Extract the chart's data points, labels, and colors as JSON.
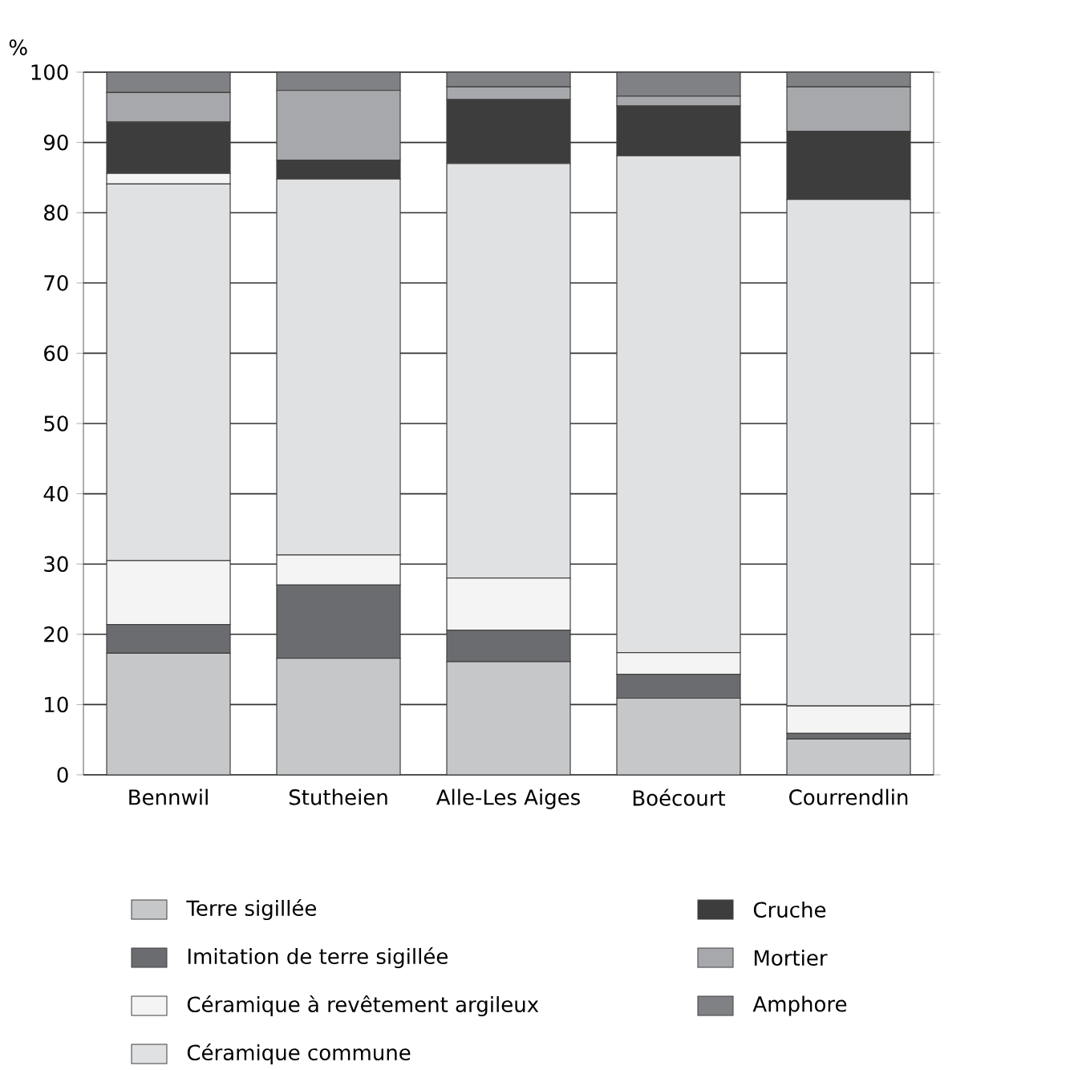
{
  "chart_data": {
    "type": "bar",
    "stacked": true,
    "ylabel": "%",
    "categories": [
      "Bennwil",
      "Stutheien",
      "Alle-Les Aiges",
      "Boécourt",
      "Courrendlin"
    ],
    "ylim": [
      0,
      100
    ],
    "yticks": [
      0,
      10,
      20,
      30,
      40,
      50,
      60,
      70,
      80,
      90,
      100
    ],
    "grid": "y",
    "legend": "bottom",
    "series": [
      {
        "name": "Terre sigillée",
        "color": "#c6c7c9",
        "values": [
          17.3,
          16.6,
          16.1,
          10.9,
          5.1
        ]
      },
      {
        "name": "Imitation de terre sigillée",
        "color": "#6b6c70",
        "values": [
          4.1,
          10.4,
          4.5,
          3.4,
          0.8
        ]
      },
      {
        "name": "Céramique à revêtement argileux",
        "color": "#f4f4f4",
        "values": [
          9.1,
          4.3,
          7.4,
          3.1,
          3.9
        ]
      },
      {
        "name": "Céramique commune",
        "color": "#e0e1e3",
        "values": [
          53.6,
          53.5,
          59.0,
          70.7,
          72.1
        ]
      },
      {
        "color": "#f4f4f4",
        "values": [
          1.5,
          0,
          0,
          0,
          0
        ]
      },
      {
        "name": "Cruche",
        "color": "#3d3d3d",
        "values": [
          7.3,
          2.7,
          9.1,
          7.1,
          9.7
        ]
      },
      {
        "name": "Mortier",
        "color": "#a7a8ab",
        "values": [
          4.2,
          9.9,
          1.8,
          1.4,
          6.3
        ]
      },
      {
        "name": "Amphore",
        "color": "#808184",
        "values": [
          2.9,
          2.6,
          2.1,
          3.4,
          2.1
        ]
      }
    ]
  }
}
